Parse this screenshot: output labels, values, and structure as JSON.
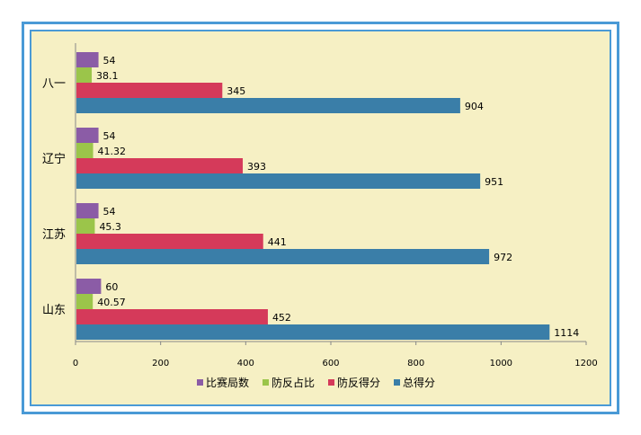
{
  "chart_data": {
    "type": "bar",
    "orientation": "horizontal",
    "categories": [
      "八一",
      "辽宁",
      "江苏",
      "山东"
    ],
    "series": [
      {
        "name": "比赛局数",
        "color": "#8b5ca6",
        "values": [
          54,
          54,
          54,
          60
        ],
        "labels": [
          "54",
          "54",
          "54",
          "60"
        ]
      },
      {
        "name": "防反占比",
        "color": "#9bc54a",
        "values": [
          38.1,
          41.32,
          45.3,
          40.57
        ],
        "labels": [
          "38.1",
          "41.32",
          "45.3",
          "40.57"
        ]
      },
      {
        "name": "防反得分",
        "color": "#d53a5a",
        "values": [
          345,
          393,
          441,
          452
        ],
        "labels": [
          "345",
          "393",
          "441",
          "452"
        ]
      },
      {
        "name": "总得分",
        "color": "#3a7ea8",
        "values": [
          904,
          951,
          972,
          1114
        ],
        "labels": [
          "904",
          "951",
          "972",
          "1114"
        ]
      }
    ],
    "xticks": [
      "0",
      "200",
      "400",
      "600",
      "800",
      "1000",
      "1200"
    ],
    "xlim": [
      0,
      1200
    ],
    "title": "",
    "xlabel": "",
    "ylabel": "",
    "grid": false,
    "legend_position": "bottom"
  }
}
